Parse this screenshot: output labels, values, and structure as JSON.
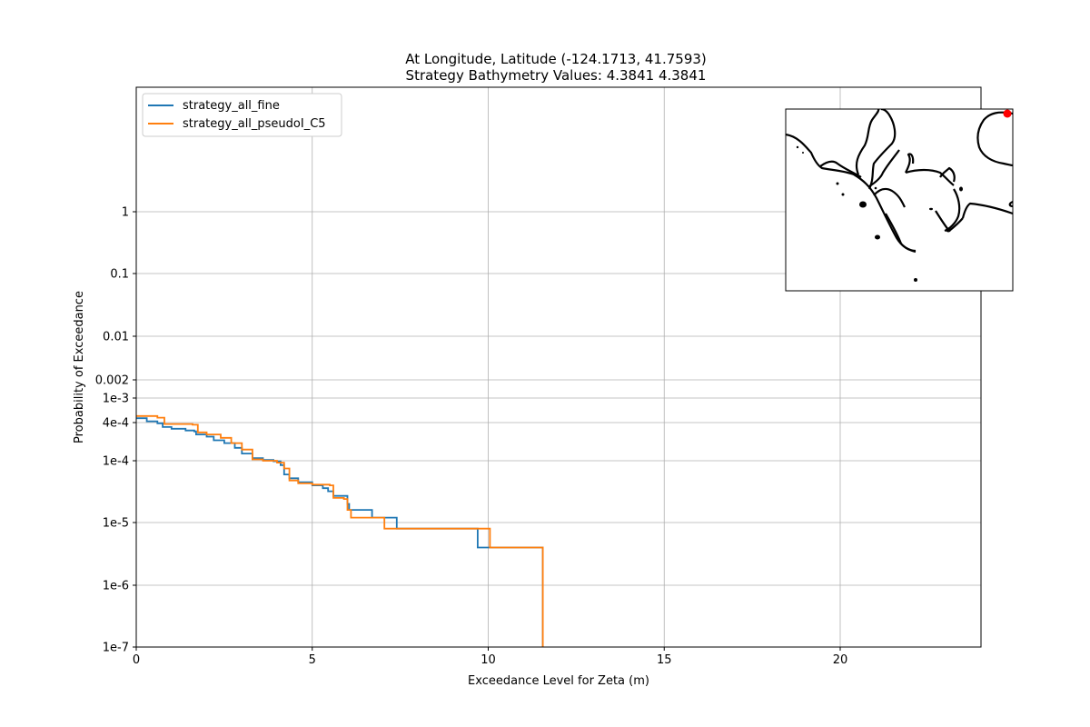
{
  "chart_data": {
    "type": "line",
    "title": "At Longitude, Latitude (-124.1713,  41.7593)",
    "subtitle": "Strategy Bathymetry Values:    4.3841    4.3841",
    "xlabel": "Exceedance Level for Zeta (m)",
    "ylabel": "Probability of Exceedance",
    "xlim": [
      0,
      24
    ],
    "x_ticks": [
      0,
      5,
      10,
      15,
      20
    ],
    "y_scale": "custom-log",
    "y_ticks": [
      {
        "value": 1e-07,
        "label": "1e-7"
      },
      {
        "value": 1e-06,
        "label": "1e-6"
      },
      {
        "value": 1e-05,
        "label": "1e-5"
      },
      {
        "value": 0.0001,
        "label": "1e-4"
      },
      {
        "value": 0.0004,
        "label": "4e-4"
      },
      {
        "value": 0.001,
        "label": "1e-3"
      },
      {
        "value": 0.002,
        "label": "0.002"
      },
      {
        "value": 0.01,
        "label": "0.01"
      },
      {
        "value": 0.1,
        "label": "0.1"
      },
      {
        "value": 1,
        "label": "1"
      }
    ],
    "grid": true,
    "legend_position": "upper-left",
    "series": [
      {
        "name": "strategy_all_fine",
        "color": "#1f77b4",
        "points": [
          [
            0,
            0.00047
          ],
          [
            0.3,
            0.00042
          ],
          [
            0.6,
            0.00039
          ],
          [
            0.75,
            0.00034
          ],
          [
            1.0,
            0.00032
          ],
          [
            1.4,
            0.0003
          ],
          [
            1.65,
            0.00029
          ],
          [
            1.7,
            0.00026
          ],
          [
            2.0,
            0.00024
          ],
          [
            2.2,
            0.00021
          ],
          [
            2.5,
            0.00019
          ],
          [
            2.8,
            0.00016
          ],
          [
            3.0,
            0.00013
          ],
          [
            3.3,
            0.00011
          ],
          [
            3.6,
            0.000103
          ],
          [
            3.9,
            9.8e-05
          ],
          [
            4.1,
            8.5e-05
          ],
          [
            4.2,
            6e-05
          ],
          [
            4.35,
            5.2e-05
          ],
          [
            4.6,
            4.5e-05
          ],
          [
            5.0,
            4e-05
          ],
          [
            5.3,
            3.6e-05
          ],
          [
            5.45,
            3.2e-05
          ],
          [
            5.6,
            2.7e-05
          ],
          [
            6.0,
            2e-05
          ],
          [
            6.05,
            1.6e-05
          ],
          [
            6.7,
            1.2e-05
          ],
          [
            7.4,
            8e-06
          ],
          [
            9.7,
            4e-06
          ],
          [
            11.55,
            1e-07
          ]
        ]
      },
      {
        "name": "strategy_all_pseudoI_C5",
        "color": "#ff7f0e",
        "points": [
          [
            0,
            0.00051
          ],
          [
            0.6,
            0.00048
          ],
          [
            0.8,
            0.00038
          ],
          [
            1.6,
            0.00037
          ],
          [
            1.75,
            0.00028
          ],
          [
            2.0,
            0.00026
          ],
          [
            2.4,
            0.00023
          ],
          [
            2.7,
            0.00019
          ],
          [
            3.0,
            0.00015
          ],
          [
            3.3,
            0.000105
          ],
          [
            3.6,
            0.0001
          ],
          [
            4.0,
            9.3e-05
          ],
          [
            4.2,
            7.5e-05
          ],
          [
            4.35,
            4.8e-05
          ],
          [
            4.6,
            4.3e-05
          ],
          [
            5.0,
            4.1e-05
          ],
          [
            5.5,
            4e-05
          ],
          [
            5.6,
            2.5e-05
          ],
          [
            5.9,
            2.4e-05
          ],
          [
            6.0,
            1.6e-05
          ],
          [
            6.1,
            1.2e-05
          ],
          [
            7.05,
            8e-06
          ],
          [
            10.05,
            4e-06
          ],
          [
            11.55,
            1e-07
          ]
        ]
      }
    ]
  },
  "inset_map": {
    "marker_color": "#ff0000"
  }
}
